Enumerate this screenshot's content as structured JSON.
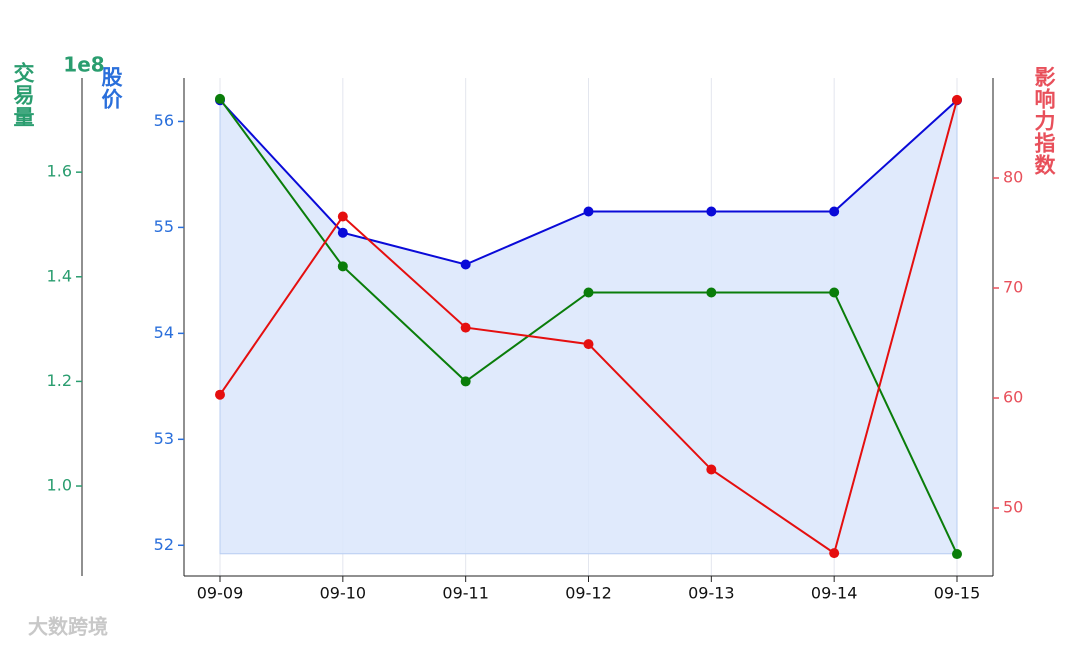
{
  "chart_data": {
    "type": "line",
    "categories": [
      "09-09",
      "09-10",
      "09-11",
      "09-12",
      "09-13",
      "09-14",
      "09-15"
    ],
    "ylabel": "股价",
    "y2label": "影响力指数",
    "y3label": "交易量",
    "y3offset": "1e8",
    "ylim": [
      51.71,
      56.41
    ],
    "yticks": [
      52,
      53,
      54,
      55,
      56
    ],
    "y2lim": [
      43.82,
      89.09
    ],
    "y2ticks": [
      50,
      60,
      70,
      80
    ],
    "y3lim": [
      0.828,
      1.78
    ],
    "y3ticks": [
      {
        "value": 1.0,
        "label": "1.0"
      },
      {
        "value": 1.2,
        "label": "1.2"
      },
      {
        "value": 1.4,
        "label": "1.4"
      },
      {
        "value": 1.6,
        "label": "1.6"
      }
    ],
    "grid": "x",
    "watermark": "大数跨境",
    "series": [
      {
        "axis": "y",
        "color": "#0a0ad8",
        "fill_color": "#dbe6fb",
        "fill_to": 51.92,
        "values": [
          56.2,
          54.95,
          54.65,
          55.15,
          55.15,
          55.15,
          56.2
        ]
      },
      {
        "axis": "y3",
        "color": "#0a7d0a",
        "values": [
          1.74,
          1.42,
          1.2,
          1.37,
          1.37,
          1.37,
          0.87
        ]
      },
      {
        "axis": "y2",
        "color": "#e50f0f",
        "values": [
          60.3,
          76.5,
          66.4,
          64.9,
          53.5,
          45.9,
          87.1
        ]
      }
    ],
    "axis_colors": {
      "y": "#2a6fdb",
      "y2": "#e8505b",
      "y3": "#2a9d6f"
    }
  }
}
